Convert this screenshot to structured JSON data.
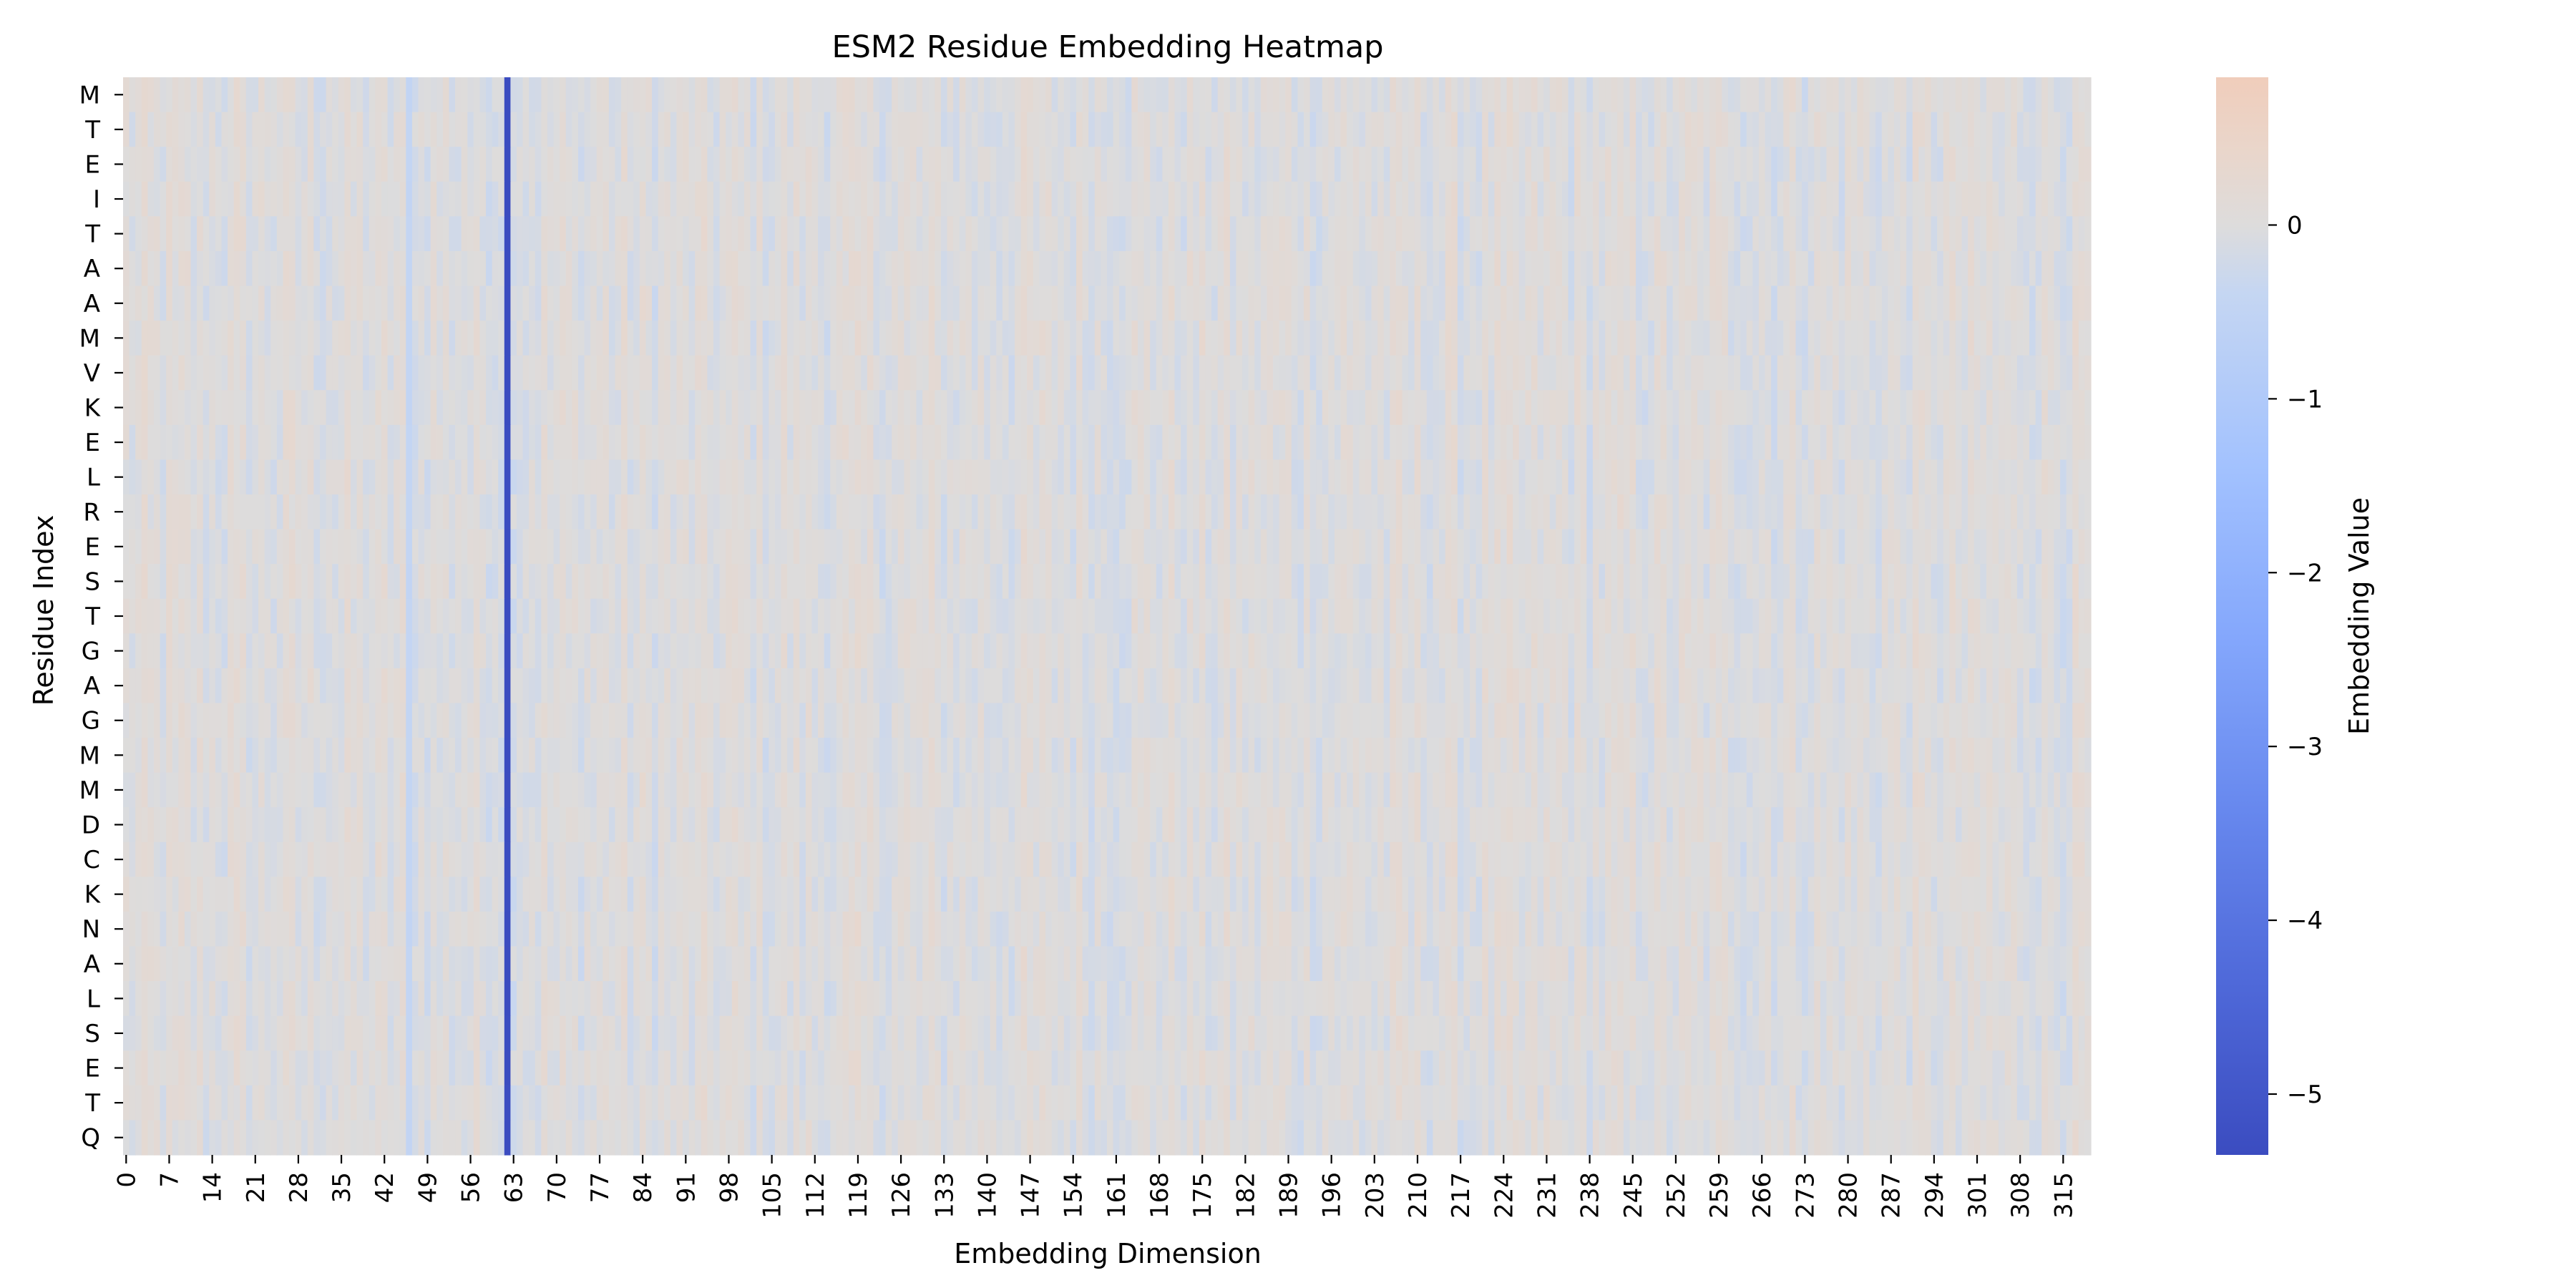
{
  "chart_data": {
    "type": "heatmap",
    "title": "ESM2 Residue Embedding Heatmap",
    "xlabel": "Embedding Dimension",
    "ylabel": "Residue Index",
    "y_categories": [
      "M",
      "T",
      "E",
      "I",
      "T",
      "A",
      "A",
      "M",
      "V",
      "K",
      "E",
      "L",
      "R",
      "E",
      "S",
      "T",
      "G",
      "A",
      "G",
      "M",
      "M",
      "D",
      "C",
      "K",
      "N",
      "A",
      "L",
      "S",
      "E",
      "T",
      "Q"
    ],
    "x_range": [
      0,
      319
    ],
    "x_tick_labels": [
      "0",
      "7",
      "14",
      "21",
      "28",
      "35",
      "42",
      "49",
      "56",
      "63",
      "70",
      "77",
      "84",
      "91",
      "98",
      "105",
      "112",
      "119",
      "126",
      "133",
      "140",
      "147",
      "154",
      "161",
      "168",
      "175",
      "182",
      "189",
      "196",
      "203",
      "210",
      "217",
      "224",
      "231",
      "238",
      "245",
      "252",
      "259",
      "266",
      "273",
      "280",
      "287",
      "294",
      "301",
      "308",
      "315"
    ],
    "value_range": [
      -5.35,
      0.85
    ],
    "colormap": "coolwarm",
    "colorbar": {
      "label": "Embedding Value",
      "tick_values": [
        0,
        -1,
        -2,
        -3,
        -4,
        -5
      ],
      "tick_labels": [
        "0",
        "−1",
        "−2",
        "−3",
        "−4",
        "−5"
      ]
    },
    "notable_columns": [
      {
        "dimension": 62,
        "value": -5.35
      },
      {
        "dimension": 46,
        "value": -0.45
      }
    ],
    "typical_value_range": [
      -0.4,
      0.4
    ]
  }
}
